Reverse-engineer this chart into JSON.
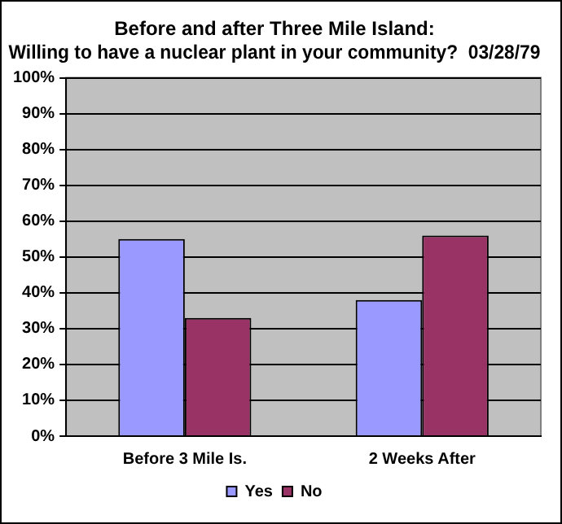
{
  "chart_data": {
    "type": "bar",
    "title": "Before and after Three Mile Island:\nWilling to have a nuclear plant in your community?  03/28/79",
    "categories": [
      "Before 3 Mile Is.",
      "2 Weeks After"
    ],
    "series": [
      {
        "name": "Yes",
        "color": "#9999ff",
        "values": [
          55,
          38
        ]
      },
      {
        "name": "No",
        "color": "#993366",
        "values": [
          33,
          56
        ]
      }
    ],
    "ylim": [
      0,
      100
    ],
    "yticks": [
      {
        "value": 0,
        "label": "0%"
      },
      {
        "value": 10,
        "label": "10%"
      },
      {
        "value": 20,
        "label": "20%"
      },
      {
        "value": 30,
        "label": "30%"
      },
      {
        "value": 40,
        "label": "40%"
      },
      {
        "value": 50,
        "label": "50%"
      },
      {
        "value": 60,
        "label": "60%"
      },
      {
        "value": 70,
        "label": "70%"
      },
      {
        "value": 80,
        "label": "80%"
      },
      {
        "value": 90,
        "label": "90%"
      },
      {
        "value": 100,
        "label": "100%"
      }
    ],
    "grid": "y",
    "legend": "bottom"
  }
}
